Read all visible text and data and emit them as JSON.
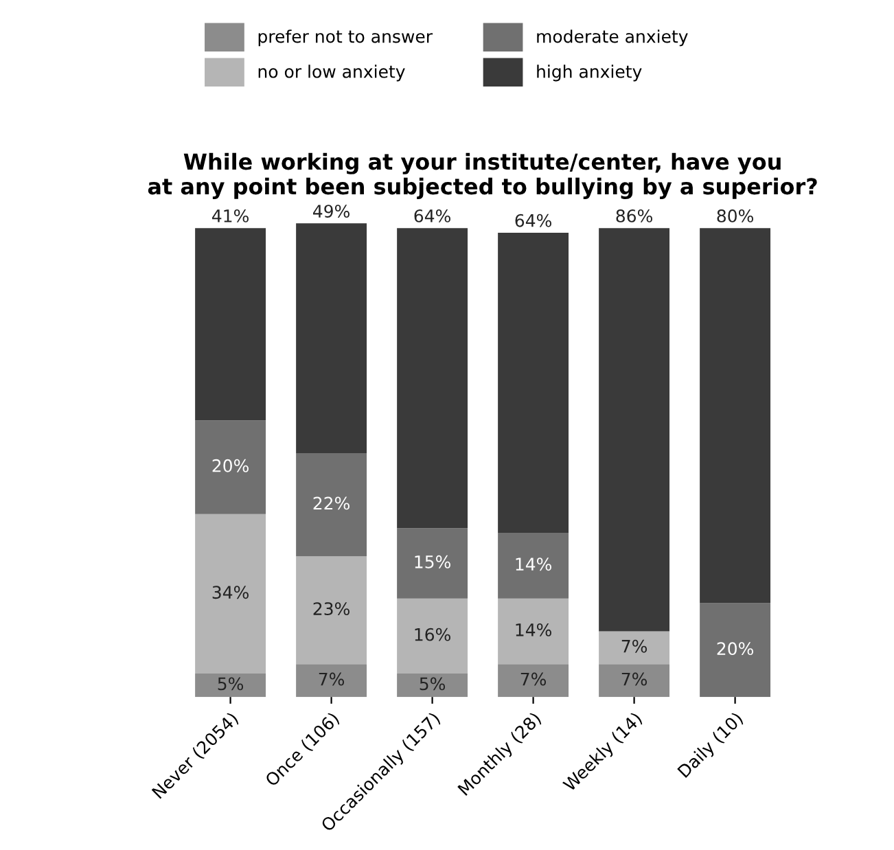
{
  "chart_data": {
    "type": "bar",
    "stacked": true,
    "title": "While working at your institute/center, have you\nat any point been subjected to bullying by a superior?",
    "categories": [
      "Never (2054)",
      "Once (106)",
      "Occasionally (157)",
      "Monthly (28)",
      "Weekly (14)",
      "Daily (10)"
    ],
    "series": [
      {
        "name": "prefer not to answer",
        "color": "#8c8c8c",
        "values": [
          5,
          7,
          5,
          7,
          7,
          0
        ],
        "value_labels": [
          "5%",
          "7%",
          "5%",
          "7%",
          "7%",
          null
        ]
      },
      {
        "name": "no or low anxiety",
        "color": "#b5b5b5",
        "values": [
          34,
          23,
          16,
          14,
          7,
          0
        ],
        "value_labels": [
          "34%",
          "23%",
          "16%",
          "14%",
          "7%",
          null
        ]
      },
      {
        "name": "moderate anxiety",
        "color": "#707070",
        "values": [
          20,
          22,
          15,
          14,
          0,
          20
        ],
        "value_labels": [
          "20%",
          "22%",
          "15%",
          "14%",
          null,
          "20%"
        ]
      },
      {
        "name": "high anxiety",
        "color": "#3a3a3a",
        "values": [
          41,
          49,
          64,
          64,
          86,
          80
        ],
        "value_labels": [
          "41%",
          "49%",
          "64%",
          "64%",
          "86%",
          "80%"
        ]
      }
    ],
    "legend": "top",
    "grid": false
  }
}
